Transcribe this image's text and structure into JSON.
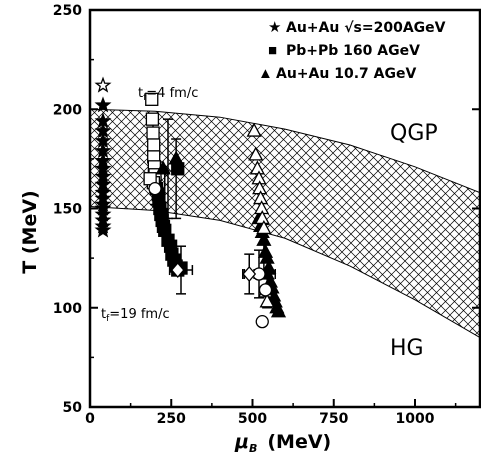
{
  "chart_data": {
    "type": "scatter",
    "xlabel_mu": "μ",
    "xlabel_sub": "B",
    "xlabel_unit": "(MeV)",
    "ylabel": "T (MeV)",
    "xlim": [
      0,
      1200
    ],
    "ylim": [
      50,
      250
    ],
    "xticks": [
      "0",
      "250",
      "500",
      "750",
      "1000"
    ],
    "yticks": [
      "50",
      "100",
      "150",
      "200",
      "250"
    ],
    "legend": [
      {
        "marker": "★",
        "label": "Au+Au √s=200AGeV"
      },
      {
        "marker": "■",
        "label": "Pb+Pb 160 AGeV"
      },
      {
        "marker": "▲",
        "label": "Au+Au 10.7 AGeV"
      }
    ],
    "annotations": {
      "tf4_a": "t",
      "tf4_sub": "f",
      "tf4_b": "=4 fm/c",
      "tf19_a": "t",
      "tf19_sub": "f",
      "tf19_b": "=19 fm/c",
      "qgp": "QGP",
      "hg": "HG"
    },
    "band": {
      "x": [
        0,
        200,
        400,
        600,
        800,
        1000,
        1200
      ],
      "upper": [
        200,
        199,
        196,
        190,
        182,
        171,
        158
      ],
      "lower": [
        151,
        149,
        144,
        135,
        121,
        104,
        85
      ]
    },
    "series": [
      {
        "marker": "star",
        "filled": true,
        "points": [
          [
            40,
            202
          ],
          [
            40,
            194
          ],
          [
            40,
            189
          ],
          [
            40,
            184
          ],
          [
            40,
            179
          ],
          [
            40,
            174
          ],
          [
            40,
            170
          ],
          [
            40,
            166
          ],
          [
            40,
            162
          ],
          [
            40,
            158
          ],
          [
            40,
            155
          ],
          [
            40,
            152
          ],
          [
            40,
            150
          ],
          [
            40,
            147
          ],
          [
            40,
            144
          ],
          [
            40,
            141
          ],
          [
            40,
            139
          ]
        ]
      },
      {
        "marker": "star",
        "filled": false,
        "points": [
          [
            40,
            212
          ]
        ]
      },
      {
        "marker": "square",
        "filled": true,
        "points": [
          [
            200,
            163
          ],
          [
            205,
            160
          ],
          [
            210,
            157
          ],
          [
            212,
            154
          ],
          [
            215,
            150
          ],
          [
            218,
            147
          ],
          [
            222,
            144
          ],
          [
            226,
            141
          ],
          [
            230,
            139
          ],
          [
            240,
            134
          ],
          [
            248,
            131
          ],
          [
            252,
            127
          ],
          [
            258,
            124
          ],
          [
            265,
            121
          ],
          [
            270,
            119
          ],
          [
            280,
            120
          ],
          [
            270,
            170
          ]
        ]
      },
      {
        "marker": "square",
        "filled": false,
        "points": [
          [
            190,
            205
          ],
          [
            192,
            195
          ],
          [
            194,
            188
          ],
          [
            196,
            182
          ],
          [
            196,
            176
          ],
          [
            198,
            171
          ],
          [
            200,
            167
          ],
          [
            195,
            163
          ],
          [
            185,
            165
          ]
        ]
      },
      {
        "marker": "triangle",
        "filled": true,
        "points": [
          [
            225,
            170
          ],
          [
            265,
            175
          ],
          [
            520,
            145
          ],
          [
            525,
            141
          ],
          [
            530,
            138
          ],
          [
            535,
            134
          ],
          [
            540,
            128
          ],
          [
            545,
            125
          ],
          [
            550,
            120
          ],
          [
            545,
            117
          ],
          [
            555,
            113
          ],
          [
            560,
            110
          ],
          [
            565,
            106
          ],
          [
            570,
            103
          ],
          [
            575,
            100
          ],
          [
            580,
            98
          ]
        ]
      },
      {
        "marker": "triangle",
        "filled": false,
        "points": [
          [
            505,
            189
          ],
          [
            510,
            177
          ],
          [
            515,
            170
          ],
          [
            520,
            165
          ],
          [
            522,
            160
          ],
          [
            525,
            155
          ],
          [
            528,
            150
          ],
          [
            530,
            145
          ],
          [
            535,
            140
          ],
          [
            540,
            108
          ],
          [
            545,
            103
          ]
        ]
      },
      {
        "marker": "circle",
        "filled": false,
        "points": [
          [
            520,
            117
          ],
          [
            530,
            93
          ],
          [
            540,
            109
          ],
          [
            200,
            160
          ]
        ]
      },
      {
        "marker": "diamond",
        "filled": false,
        "points": [
          [
            490,
            117
          ],
          [
            270,
            119
          ]
        ]
      }
    ],
    "error_bars": [
      {
        "x": 240,
        "y": 170,
        "dy": 25,
        "dx": 0
      },
      {
        "x": 265,
        "y": 165,
        "dy": 20,
        "dx": 0
      },
      {
        "x": 230,
        "y": 157,
        "dy": 12,
        "dx": 0
      },
      {
        "x": 200,
        "y": 160,
        "dy": 8,
        "dx": 15
      },
      {
        "x": 280,
        "y": 119,
        "dy": 12,
        "dx": 35
      },
      {
        "x": 520,
        "y": 117,
        "dy": 12,
        "dx": 50
      },
      {
        "x": 490,
        "y": 117,
        "dy": 10,
        "dx": 15
      },
      {
        "x": 535,
        "y": 130,
        "dy": 12,
        "dx": 0
      },
      {
        "x": 545,
        "y": 108,
        "dy": 8,
        "dx": 20
      }
    ]
  }
}
